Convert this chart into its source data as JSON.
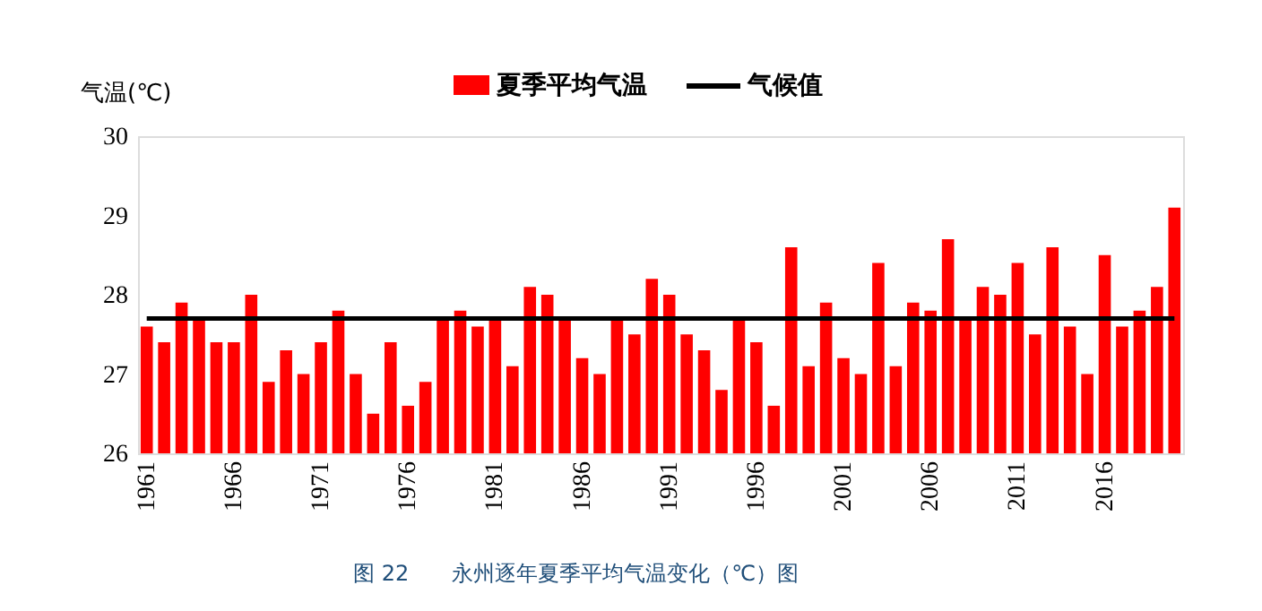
{
  "chart_data": {
    "type": "bar",
    "ylabel": "气温(℃)",
    "categories": [
      "1961",
      null,
      null,
      null,
      null,
      "1966",
      null,
      null,
      null,
      null,
      "1971",
      null,
      null,
      null,
      null,
      "1976",
      null,
      null,
      null,
      null,
      "1981",
      null,
      null,
      null,
      null,
      "1986",
      null,
      null,
      null,
      null,
      "1991",
      null,
      null,
      null,
      null,
      "1996",
      null,
      null,
      null,
      null,
      "2001",
      null,
      null,
      null,
      null,
      "2006",
      null,
      null,
      null,
      null,
      "2011",
      null,
      null,
      null,
      null,
      "2016",
      null,
      null,
      null,
      null
    ],
    "series": [
      {
        "name": "夏季平均气温",
        "color": "#ff0000",
        "values": [
          27.6,
          27.4,
          27.9,
          27.7,
          27.4,
          27.4,
          28.0,
          26.9,
          27.3,
          27.0,
          27.4,
          27.8,
          27.0,
          26.5,
          27.4,
          26.6,
          26.9,
          27.7,
          27.8,
          27.6,
          27.7,
          27.1,
          28.1,
          28.0,
          27.7,
          27.2,
          27.0,
          27.7,
          27.5,
          28.2,
          28.0,
          27.5,
          27.3,
          26.8,
          27.7,
          27.4,
          26.6,
          28.6,
          27.1,
          27.9,
          27.2,
          27.0,
          28.4,
          27.1,
          27.9,
          27.8,
          28.7,
          27.7,
          28.1,
          28.0,
          28.4,
          27.5,
          28.6,
          27.6,
          27.0,
          28.5,
          27.6,
          27.8,
          28.1,
          29.1
        ]
      },
      {
        "name": "气候值",
        "type": "line",
        "color": "#000000",
        "values": [
          27.7,
          27.7,
          27.7,
          27.7,
          27.7,
          27.7,
          27.7,
          27.7,
          27.7,
          27.7,
          27.7,
          27.7,
          27.7,
          27.7,
          27.7,
          27.7,
          27.7,
          27.7,
          27.7,
          27.7,
          27.7,
          27.7,
          27.7,
          27.7,
          27.7,
          27.7,
          27.7,
          27.7,
          27.7,
          27.7,
          27.7,
          27.7,
          27.7,
          27.7,
          27.7,
          27.7,
          27.7,
          27.7,
          27.7,
          27.7,
          27.7,
          27.7,
          27.7,
          27.7,
          27.7,
          27.7,
          27.7,
          27.7,
          27.7,
          27.7,
          27.7,
          27.7,
          27.7,
          27.7,
          27.7,
          27.7,
          27.7,
          27.7,
          27.7,
          27.7
        ]
      }
    ],
    "ylim": [
      26,
      30
    ],
    "yticks": [
      26,
      27,
      28,
      29,
      30
    ],
    "grid": false,
    "legend": "top",
    "marker": "none",
    "annotations": [
      "图 22　　永州逐年夏季平均气温变化（℃）图"
    ]
  }
}
